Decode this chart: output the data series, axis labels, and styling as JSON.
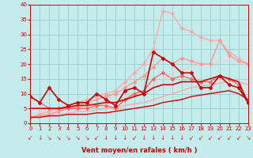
{
  "xlabel": "Vent moyen/en rafales ( km/h )",
  "xlim": [
    0,
    23
  ],
  "ylim": [
    0,
    40
  ],
  "yticks": [
    0,
    5,
    10,
    15,
    20,
    25,
    30,
    35,
    40
  ],
  "xticks": [
    0,
    1,
    2,
    3,
    4,
    5,
    6,
    7,
    8,
    9,
    10,
    11,
    12,
    13,
    14,
    15,
    16,
    17,
    18,
    19,
    20,
    21,
    22,
    23
  ],
  "bg_color": "#c5ecec",
  "grid_color": "#99cccc",
  "lines": [
    {
      "x": [
        0,
        1,
        2,
        3,
        4,
        5,
        6,
        7,
        8,
        9,
        10,
        11,
        12,
        13,
        14,
        15,
        16,
        17,
        18,
        19,
        20,
        21,
        22,
        23
      ],
      "y": [
        2,
        2.5,
        3,
        3,
        3.5,
        4,
        4,
        4.5,
        5,
        5,
        6,
        6.5,
        7,
        8,
        9,
        10,
        11,
        12,
        12.5,
        13,
        13.5,
        14,
        14,
        13
      ],
      "color": "#ffaaaa",
      "lw": 1.0,
      "marker": null,
      "ms": 0
    },
    {
      "x": [
        0,
        1,
        2,
        3,
        4,
        5,
        6,
        7,
        8,
        9,
        10,
        11,
        12,
        13,
        14,
        15,
        16,
        17,
        18,
        19,
        20,
        21,
        22,
        23
      ],
      "y": [
        3,
        3.5,
        4,
        4.5,
        5,
        5.5,
        6,
        6.5,
        7,
        7.5,
        9,
        10,
        11,
        13,
        15,
        17,
        18,
        19,
        20,
        20,
        21,
        21,
        21,
        19
      ],
      "color": "#ffcccc",
      "lw": 1.0,
      "marker": null,
      "ms": 0
    },
    {
      "x": [
        0,
        1,
        2,
        3,
        4,
        5,
        6,
        7,
        8,
        9,
        10,
        11,
        12,
        13,
        14,
        15,
        16,
        17,
        18,
        19,
        20,
        21,
        22,
        23
      ],
      "y": [
        2,
        3,
        4,
        5,
        6,
        7,
        8,
        9,
        10,
        11,
        14,
        17,
        20,
        25,
        38,
        37,
        32,
        31,
        29,
        28,
        28,
        24,
        22,
        20
      ],
      "color": "#ffaaaa",
      "lw": 1.0,
      "marker": "D",
      "ms": 2
    },
    {
      "x": [
        0,
        1,
        2,
        3,
        4,
        5,
        6,
        7,
        8,
        9,
        10,
        11,
        12,
        13,
        14,
        15,
        16,
        17,
        18,
        19,
        20,
        21,
        22,
        23
      ],
      "y": [
        2,
        2.5,
        3,
        4,
        5,
        6,
        7,
        8,
        9,
        10,
        12,
        14,
        16,
        19,
        22,
        20,
        22,
        21,
        20,
        20,
        28,
        23,
        21,
        20
      ],
      "color": "#ff9999",
      "lw": 1.0,
      "marker": "D",
      "ms": 2
    },
    {
      "x": [
        0,
        1,
        2,
        3,
        4,
        5,
        6,
        7,
        8,
        9,
        10,
        11,
        12,
        13,
        14,
        15,
        16,
        17,
        18,
        19,
        20,
        21,
        22,
        23
      ],
      "y": [
        9,
        7,
        5,
        5,
        5,
        5,
        5,
        6,
        6,
        5,
        8,
        10,
        11,
        15,
        17,
        15,
        16,
        15,
        14,
        14,
        16,
        15,
        13,
        7
      ],
      "color": "#ff6666",
      "lw": 1.0,
      "marker": "D",
      "ms": 2
    },
    {
      "x": [
        0,
        1,
        2,
        3,
        4,
        5,
        6,
        7,
        8,
        9,
        10,
        11,
        12,
        13,
        14,
        15,
        16,
        17,
        18,
        19,
        20,
        21,
        22,
        23
      ],
      "y": [
        2,
        2,
        2.5,
        2.5,
        3,
        3,
        3,
        3.5,
        3.5,
        4,
        4.5,
        5,
        5.5,
        6,
        7,
        7.5,
        8,
        9,
        9.5,
        10,
        10.5,
        11,
        10,
        8
      ],
      "color": "#cc0000",
      "lw": 1.0,
      "marker": null,
      "ms": 0
    },
    {
      "x": [
        0,
        1,
        2,
        3,
        4,
        5,
        6,
        7,
        8,
        9,
        10,
        11,
        12,
        13,
        14,
        15,
        16,
        17,
        18,
        19,
        20,
        21,
        22,
        23
      ],
      "y": [
        9,
        7,
        12,
        8,
        6,
        7,
        7,
        10,
        8,
        6,
        11,
        12,
        10,
        24,
        22,
        20,
        17,
        17,
        12,
        12,
        16,
        13,
        12,
        7
      ],
      "color": "#cc0000",
      "lw": 1.2,
      "marker": "D",
      "ms": 2
    },
    {
      "x": [
        0,
        1,
        2,
        3,
        4,
        5,
        6,
        7,
        8,
        9,
        10,
        11,
        12,
        13,
        14,
        15,
        16,
        17,
        18,
        19,
        20,
        21,
        22,
        23
      ],
      "y": [
        5,
        5,
        5,
        5,
        5.5,
        6,
        6,
        6.5,
        7,
        7,
        8,
        9,
        10,
        12,
        13,
        13,
        14,
        14,
        14,
        15,
        16,
        15,
        14,
        7
      ],
      "color": "#cc0000",
      "lw": 1.2,
      "marker": null,
      "ms": 0
    }
  ],
  "arrow_chars": [
    "↙",
    "↓",
    "↘",
    "↘",
    "↘",
    "↘",
    "↘",
    "↙",
    "↓",
    "↓",
    "↓",
    "↙",
    "↓",
    "↓",
    "↓",
    "↓",
    "↓",
    "↙",
    "↙",
    "↙",
    "↙",
    "↙",
    "↙",
    "↘"
  ],
  "arrow_color": "#cc3333"
}
